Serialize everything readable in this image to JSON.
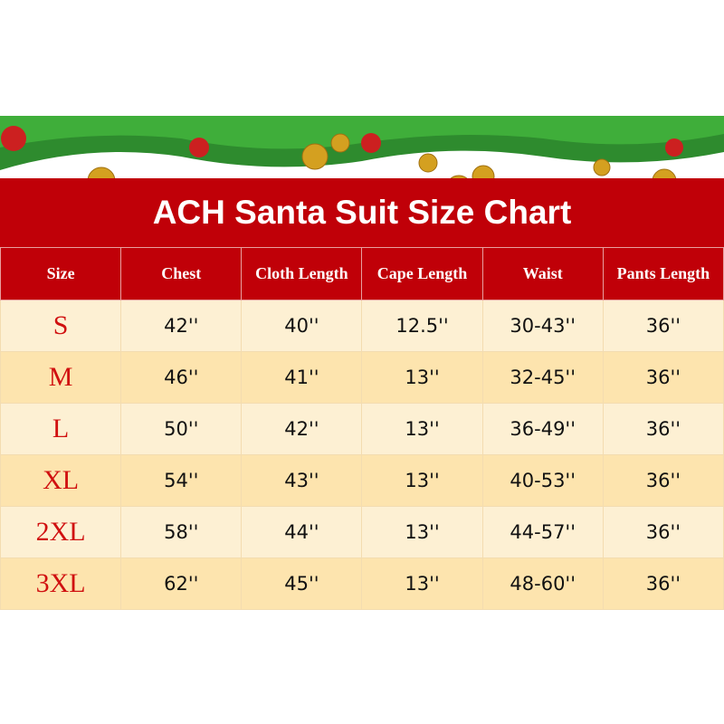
{
  "title": "ACH Santa Suit Size Chart",
  "colors": {
    "header_red": "#c00008",
    "row_light": "#fdf0d3",
    "row_dark": "#fde4ae",
    "size_text": "#d01010"
  },
  "headers": [
    "Size",
    "Chest",
    "Cloth Length",
    "Cape Length",
    "Waist",
    "Pants Length"
  ],
  "rows": [
    [
      "S",
      "42''",
      "40''",
      "12.5''",
      "30-43''",
      "36''"
    ],
    [
      "M",
      "46''",
      "41''",
      "13''",
      "32-45''",
      "36''"
    ],
    [
      "L",
      "50''",
      "42''",
      "13''",
      "36-49''",
      "36''"
    ],
    [
      "XL",
      "54''",
      "43''",
      "13''",
      "40-53''",
      "36''"
    ],
    [
      "2XL",
      "58''",
      "44''",
      "13''",
      "44-57''",
      "36''"
    ],
    [
      "3XL",
      "62''",
      "45''",
      "13''",
      "48-60''",
      "36''"
    ]
  ]
}
